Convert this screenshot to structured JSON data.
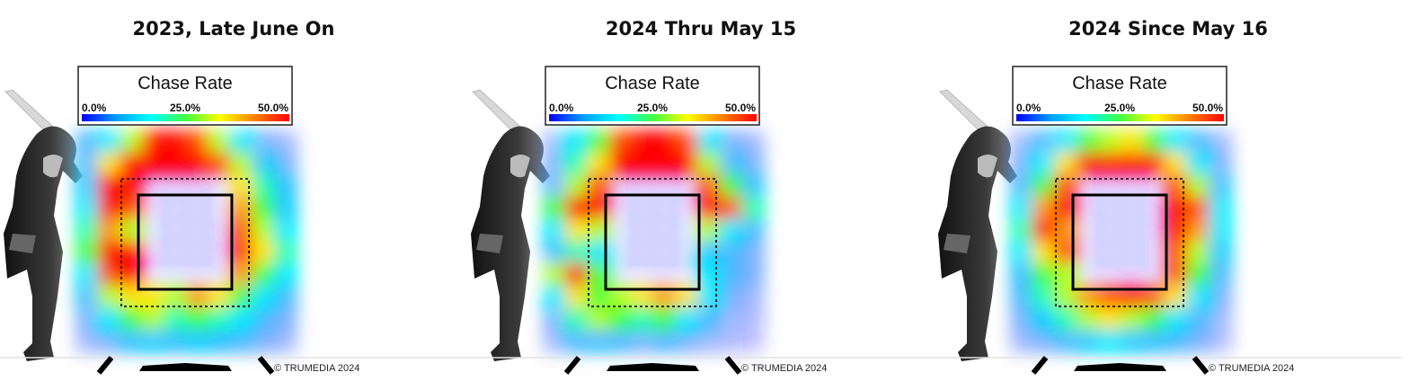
{
  "legend": {
    "title": "Chase Rate",
    "tick_labels": [
      "0.0%",
      "25.0%",
      "50.0%"
    ],
    "color_stops": [
      "#0000ff",
      "#00a0ff",
      "#00ffff",
      "#40ff40",
      "#ffff00",
      "#ff8000",
      "#ff0000"
    ]
  },
  "credit": "© TRUMEDIA 2024",
  "chart_data": [
    {
      "type": "heatmap",
      "title": "2023, Late June On",
      "metric": "Chase Rate",
      "scale_range": [
        0,
        50
      ],
      "cols": 10,
      "rows": 10,
      "grid": [
        [
          8,
          15,
          30,
          48,
          50,
          45,
          30,
          15,
          5,
          3
        ],
        [
          10,
          35,
          50,
          50,
          50,
          50,
          45,
          30,
          12,
          5
        ],
        [
          12,
          50,
          50,
          0,
          0,
          0,
          0,
          35,
          20,
          10
        ],
        [
          15,
          50,
          45,
          0,
          0,
          0,
          0,
          40,
          25,
          12
        ],
        [
          20,
          40,
          30,
          0,
          0,
          0,
          0,
          45,
          30,
          15
        ],
        [
          25,
          50,
          50,
          0,
          0,
          0,
          0,
          48,
          35,
          20
        ],
        [
          15,
          45,
          50,
          0,
          0,
          0,
          0,
          40,
          25,
          15
        ],
        [
          10,
          30,
          35,
          35,
          30,
          40,
          35,
          25,
          15,
          8
        ],
        [
          5,
          15,
          25,
          30,
          20,
          25,
          20,
          15,
          8,
          5
        ],
        [
          3,
          5,
          10,
          12,
          10,
          12,
          10,
          8,
          5,
          3
        ]
      ]
    },
    {
      "type": "heatmap",
      "title": "2024 Thru May 15",
      "metric": "Chase Rate",
      "scale_range": [
        0,
        50
      ],
      "cols": 10,
      "rows": 10,
      "grid": [
        [
          3,
          15,
          25,
          45,
          50,
          50,
          45,
          15,
          5,
          3
        ],
        [
          5,
          20,
          35,
          50,
          50,
          50,
          50,
          30,
          10,
          5
        ],
        [
          8,
          30,
          45,
          0,
          0,
          0,
          0,
          45,
          25,
          10
        ],
        [
          25,
          50,
          50,
          0,
          0,
          0,
          0,
          50,
          45,
          20
        ],
        [
          15,
          35,
          30,
          0,
          0,
          0,
          0,
          30,
          15,
          8
        ],
        [
          10,
          20,
          15,
          0,
          0,
          0,
          0,
          12,
          8,
          5
        ],
        [
          30,
          50,
          25,
          0,
          0,
          0,
          0,
          15,
          8,
          5
        ],
        [
          15,
          35,
          25,
          30,
          35,
          40,
          35,
          15,
          5,
          3
        ],
        [
          5,
          20,
          30,
          25,
          20,
          25,
          15,
          8,
          3,
          2
        ],
        [
          3,
          8,
          10,
          8,
          5,
          8,
          5,
          3,
          2,
          1
        ]
      ]
    },
    {
      "type": "heatmap",
      "title": "2024 Since May 16",
      "metric": "Chase Rate",
      "scale_range": [
        0,
        50
      ],
      "cols": 10,
      "rows": 10,
      "grid": [
        [
          3,
          8,
          15,
          25,
          30,
          35,
          25,
          15,
          8,
          3
        ],
        [
          5,
          15,
          35,
          50,
          50,
          50,
          50,
          35,
          15,
          5
        ],
        [
          8,
          25,
          45,
          0,
          0,
          0,
          0,
          45,
          30,
          10
        ],
        [
          15,
          40,
          50,
          0,
          0,
          0,
          0,
          50,
          45,
          15
        ],
        [
          20,
          50,
          40,
          0,
          0,
          0,
          0,
          50,
          40,
          15
        ],
        [
          15,
          35,
          45,
          0,
          0,
          0,
          0,
          45,
          30,
          12
        ],
        [
          10,
          25,
          30,
          0,
          0,
          0,
          0,
          45,
          25,
          8
        ],
        [
          8,
          20,
          30,
          40,
          45,
          50,
          45,
          35,
          15,
          5
        ],
        [
          5,
          12,
          20,
          30,
          35,
          30,
          25,
          15,
          8,
          3
        ],
        [
          3,
          5,
          8,
          12,
          15,
          12,
          10,
          8,
          5,
          2
        ]
      ]
    }
  ]
}
